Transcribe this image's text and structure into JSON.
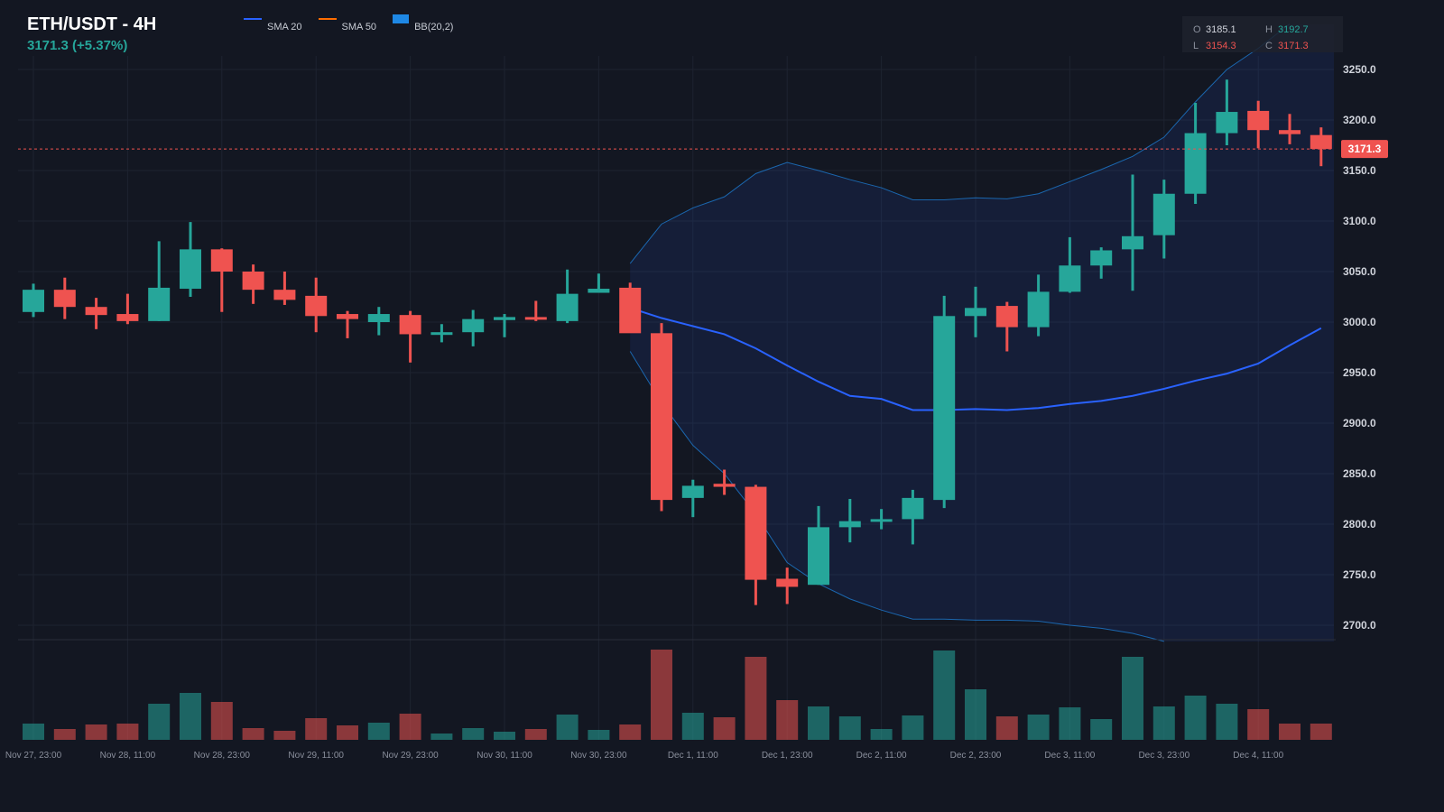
{
  "header": {
    "title": "ETH/USDT - 4H",
    "price_change": "3171.3 (+5.37%)"
  },
  "legend": [
    {
      "label": "SMA 20",
      "color": "#2962ff",
      "kind": "line"
    },
    {
      "label": "SMA 50",
      "color": "#ff6d00",
      "kind": "line"
    },
    {
      "label": "BB(20,2)",
      "color": "#1e88e5",
      "kind": "box"
    }
  ],
  "ohlc": {
    "o_label": "O",
    "o_value": "3185.1",
    "h_label": "H",
    "h_value": "3192.7",
    "l_label": "L",
    "l_value": "3154.3",
    "c_label": "C",
    "c_value": "3171.3"
  },
  "colors": {
    "up": "#26a69a",
    "down": "#ef5350",
    "sma20": "#2962ff",
    "bb": "#1e88e5",
    "background": "#131722",
    "grid": "#1e2330"
  },
  "chart_data": {
    "type": "candlestick",
    "title": "ETH/USDT - 4H",
    "last_price": 3171.3,
    "last_price_label": "3171.3",
    "ylim": [
      2680,
      3295
    ],
    "y_ticks": [
      {
        "value": 3250,
        "label": "3250.0"
      },
      {
        "value": 3200,
        "label": "3200.0"
      },
      {
        "value": 3150,
        "label": "3150.0"
      },
      {
        "value": 3100,
        "label": "3100.0"
      },
      {
        "value": 3050,
        "label": "3050.0"
      },
      {
        "value": 3000,
        "label": "3000.0"
      },
      {
        "value": 2950,
        "label": "2950.0"
      },
      {
        "value": 2900,
        "label": "2900.0"
      },
      {
        "value": 2850,
        "label": "2850.0"
      },
      {
        "value": 2800,
        "label": "2800.0"
      },
      {
        "value": 2750,
        "label": "2750.0"
      },
      {
        "value": 2700,
        "label": "2700.0"
      }
    ],
    "x_ticks": [
      {
        "index": 0,
        "label": "Nov 27, 23:00"
      },
      {
        "index": 3,
        "label": "Nov 28, 11:00"
      },
      {
        "index": 6,
        "label": "Nov 28, 23:00"
      },
      {
        "index": 9,
        "label": "Nov 29, 11:00"
      },
      {
        "index": 12,
        "label": "Nov 29, 23:00"
      },
      {
        "index": 15,
        "label": "Nov 30, 11:00"
      },
      {
        "index": 18,
        "label": "Nov 30, 23:00"
      },
      {
        "index": 21,
        "label": "Dec 1, 11:00"
      },
      {
        "index": 24,
        "label": "Dec 1, 23:00"
      },
      {
        "index": 27,
        "label": "Dec 2, 11:00"
      },
      {
        "index": 30,
        "label": "Dec 2, 23:00"
      },
      {
        "index": 33,
        "label": "Dec 3, 11:00"
      },
      {
        "index": 36,
        "label": "Dec 3, 23:00"
      },
      {
        "index": 39,
        "label": "Dec 4, 11:00"
      }
    ],
    "candles": [
      {
        "o": 3010,
        "h": 3038,
        "l": 3005,
        "c": 3032
      },
      {
        "o": 3032,
        "h": 3044,
        "l": 3003,
        "c": 3015
      },
      {
        "o": 3015,
        "h": 3024,
        "l": 2993,
        "c": 3007
      },
      {
        "o": 3008,
        "h": 3028,
        "l": 2998,
        "c": 3001
      },
      {
        "o": 3001,
        "h": 3080,
        "l": 3001,
        "c": 3034
      },
      {
        "o": 3033,
        "h": 3099,
        "l": 3025,
        "c": 3072
      },
      {
        "o": 3072,
        "h": 3073,
        "l": 3010,
        "c": 3050
      },
      {
        "o": 3050,
        "h": 3057,
        "l": 3018,
        "c": 3032
      },
      {
        "o": 3032,
        "h": 3050,
        "l": 3017,
        "c": 3022
      },
      {
        "o": 3026,
        "h": 3044,
        "l": 2990,
        "c": 3006
      },
      {
        "o": 3008,
        "h": 3011,
        "l": 2984,
        "c": 3003
      },
      {
        "o": 3000,
        "h": 3015,
        "l": 2987,
        "c": 3008
      },
      {
        "o": 3007,
        "h": 3011,
        "l": 2960,
        "c": 2988
      },
      {
        "o": 2988,
        "h": 2998,
        "l": 2980,
        "c": 2990
      },
      {
        "o": 2990,
        "h": 3012,
        "l": 2976,
        "c": 3003
      },
      {
        "o": 3002,
        "h": 3008,
        "l": 2985,
        "c": 3005
      },
      {
        "o": 3005,
        "h": 3021,
        "l": 3001,
        "c": 3004
      },
      {
        "o": 3001,
        "h": 3052,
        "l": 2999,
        "c": 3028
      },
      {
        "o": 3029,
        "h": 3048,
        "l": 3029,
        "c": 3033
      },
      {
        "o": 3034,
        "h": 3039,
        "l": 2990,
        "c": 2989
      },
      {
        "o": 2989,
        "h": 2999,
        "l": 2813,
        "c": 2824
      },
      {
        "o": 2826,
        "h": 2844,
        "l": 2807,
        "c": 2838
      },
      {
        "o": 2840,
        "h": 2854,
        "l": 2829,
        "c": 2837
      },
      {
        "o": 2837,
        "h": 2839,
        "l": 2720,
        "c": 2745
      },
      {
        "o": 2746,
        "h": 2757,
        "l": 2721,
        "c": 2738
      },
      {
        "o": 2740,
        "h": 2818,
        "l": 2740,
        "c": 2797
      },
      {
        "o": 2797,
        "h": 2825,
        "l": 2782,
        "c": 2803
      },
      {
        "o": 2803,
        "h": 2815,
        "l": 2795,
        "c": 2805
      },
      {
        "o": 2805,
        "h": 2834,
        "l": 2780,
        "c": 2826
      },
      {
        "o": 2824,
        "h": 3026,
        "l": 2816,
        "c": 3006
      },
      {
        "o": 3006,
        "h": 3035,
        "l": 2985,
        "c": 3014
      },
      {
        "o": 3016,
        "h": 3020,
        "l": 2971,
        "c": 2995
      },
      {
        "o": 2995,
        "h": 3047,
        "l": 2986,
        "c": 3030
      },
      {
        "o": 3030,
        "h": 3084,
        "l": 3029,
        "c": 3056
      },
      {
        "o": 3056,
        "h": 3074,
        "l": 3043,
        "c": 3071
      },
      {
        "o": 3072,
        "h": 3146,
        "l": 3031,
        "c": 3085
      },
      {
        "o": 3086,
        "h": 3141,
        "l": 3063,
        "c": 3127
      },
      {
        "o": 3127,
        "h": 3217,
        "l": 3117,
        "c": 3187
      },
      {
        "o": 3187,
        "h": 3240,
        "l": 3175,
        "c": 3208
      },
      {
        "o": 3209,
        "h": 3219,
        "l": 3172,
        "c": 3190
      },
      {
        "o": 3190,
        "h": 3206,
        "l": 3176,
        "c": 3186
      },
      {
        "o": 3185.1,
        "h": 3192.7,
        "l": 3154.3,
        "c": 3171.3
      }
    ],
    "volume": [
      18,
      12,
      17,
      18,
      40,
      52,
      42,
      13,
      10,
      24,
      16,
      19,
      29,
      7,
      13,
      9,
      12,
      28,
      11,
      17,
      100,
      30,
      25,
      92,
      44,
      37,
      26,
      12,
      27,
      99,
      56,
      26,
      28,
      36,
      23,
      92,
      37,
      49,
      40,
      34,
      18,
      18
    ],
    "sma20": [
      {
        "i": 19,
        "v": 3014
      },
      {
        "i": 20,
        "v": 3004
      },
      {
        "i": 21,
        "v": 2996
      },
      {
        "i": 22,
        "v": 2988
      },
      {
        "i": 23,
        "v": 2974
      },
      {
        "i": 24,
        "v": 2957
      },
      {
        "i": 25,
        "v": 2941
      },
      {
        "i": 26,
        "v": 2927
      },
      {
        "i": 27,
        "v": 2924
      },
      {
        "i": 28,
        "v": 2913
      },
      {
        "i": 29,
        "v": 2913
      },
      {
        "i": 30,
        "v": 2914
      },
      {
        "i": 31,
        "v": 2913
      },
      {
        "i": 32,
        "v": 2915
      },
      {
        "i": 33,
        "v": 2919
      },
      {
        "i": 34,
        "v": 2922
      },
      {
        "i": 35,
        "v": 2927
      },
      {
        "i": 36,
        "v": 2934
      },
      {
        "i": 37,
        "v": 2942
      },
      {
        "i": 38,
        "v": 2949
      },
      {
        "i": 39,
        "v": 2959
      },
      {
        "i": 40,
        "v": 2977
      },
      {
        "i": 41,
        "v": 2994
      }
    ],
    "bb_upper": [
      {
        "i": 19,
        "v": 3058
      },
      {
        "i": 20,
        "v": 3097
      },
      {
        "i": 21,
        "v": 3113
      },
      {
        "i": 22,
        "v": 3124
      },
      {
        "i": 23,
        "v": 3147
      },
      {
        "i": 24,
        "v": 3158
      },
      {
        "i": 25,
        "v": 3150
      },
      {
        "i": 26,
        "v": 3141
      },
      {
        "i": 27,
        "v": 3133
      },
      {
        "i": 28,
        "v": 3121
      },
      {
        "i": 29,
        "v": 3121
      },
      {
        "i": 30,
        "v": 3123
      },
      {
        "i": 31,
        "v": 3122
      },
      {
        "i": 32,
        "v": 3127
      },
      {
        "i": 33,
        "v": 3139
      },
      {
        "i": 34,
        "v": 3151
      },
      {
        "i": 35,
        "v": 3164
      },
      {
        "i": 36,
        "v": 3183
      },
      {
        "i": 37,
        "v": 3218
      },
      {
        "i": 38,
        "v": 3250
      },
      {
        "i": 39,
        "v": 3271
      },
      {
        "i": 40,
        "v": 3295
      }
    ],
    "bb_lower": [
      {
        "i": 19,
        "v": 2971
      },
      {
        "i": 20,
        "v": 2920
      },
      {
        "i": 21,
        "v": 2878
      },
      {
        "i": 22,
        "v": 2850
      },
      {
        "i": 23,
        "v": 2810
      },
      {
        "i": 24,
        "v": 2762
      },
      {
        "i": 25,
        "v": 2741
      },
      {
        "i": 26,
        "v": 2726
      },
      {
        "i": 27,
        "v": 2715
      },
      {
        "i": 28,
        "v": 2706
      },
      {
        "i": 29,
        "v": 2706
      },
      {
        "i": 30,
        "v": 2705
      },
      {
        "i": 31,
        "v": 2705
      },
      {
        "i": 32,
        "v": 2704
      },
      {
        "i": 33,
        "v": 2700
      },
      {
        "i": 34,
        "v": 2697
      },
      {
        "i": 35,
        "v": 2692
      },
      {
        "i": 36,
        "v": 2684
      }
    ]
  }
}
